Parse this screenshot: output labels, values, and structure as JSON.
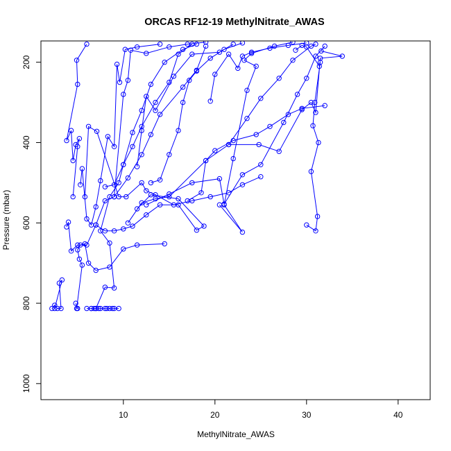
{
  "chart_data": {
    "type": "line",
    "title": "ORCAS RF12-19 MethylNitrate_AWAS",
    "xlabel": "MethylNitrate_AWAS",
    "ylabel": "Pressure (mbar)",
    "xlim": [
      1.0,
      43.5
    ],
    "ylim": [
      1040,
      147
    ],
    "y_reversed": true,
    "x_ticks": [
      10,
      20,
      30,
      40
    ],
    "y_ticks": [
      200,
      400,
      600,
      800,
      1000
    ],
    "grid": false,
    "legend": "none",
    "color": "#0000ff",
    "marker": "open-circle",
    "series": [
      {
        "values": [
          [
            2.2,
            813
          ],
          [
            2.5,
            805
          ],
          [
            2.8,
            813
          ],
          [
            3.2,
            813
          ],
          [
            3.0,
            750
          ],
          [
            3.3,
            742
          ],
          [
            2.5,
            813
          ]
        ]
      },
      {
        "values": [
          [
            4.8,
            800
          ],
          [
            5.0,
            813
          ],
          [
            4.9,
            813
          ],
          [
            5.5,
            705
          ],
          [
            5.2,
            690
          ],
          [
            5.0,
            667
          ],
          [
            5.3,
            655
          ],
          [
            5.8,
            652
          ],
          [
            6.2,
            700
          ],
          [
            7.0,
            718
          ],
          [
            8.5,
            710
          ],
          [
            10.0,
            665
          ],
          [
            11.5,
            655
          ],
          [
            14.5,
            652
          ]
        ]
      },
      {
        "values": [
          [
            6.0,
            813
          ],
          [
            6.5,
            813
          ],
          [
            7.0,
            813
          ],
          [
            7.5,
            813
          ],
          [
            8.0,
            813
          ],
          [
            8.5,
            813
          ],
          [
            9.0,
            813
          ],
          [
            9.5,
            813
          ],
          [
            8.8,
            813
          ],
          [
            8.2,
            813
          ],
          [
            7.3,
            813
          ],
          [
            6.8,
            813
          ]
        ]
      },
      {
        "values": [
          [
            6.5,
            813
          ],
          [
            7.0,
            813
          ],
          [
            8.0,
            760
          ],
          [
            9.0,
            762
          ],
          [
            8.5,
            650
          ],
          [
            7.5,
            620
          ],
          [
            8.5,
            535
          ],
          [
            9.5,
            500
          ],
          [
            10.0,
            455
          ],
          [
            11.0,
            410
          ],
          [
            12.0,
            360
          ],
          [
            13.5,
            300
          ],
          [
            15.0,
            250
          ],
          [
            16.0,
            180
          ],
          [
            17.5,
            155
          ]
        ]
      },
      {
        "values": [
          [
            3.8,
            610
          ],
          [
            4.0,
            598
          ],
          [
            4.3,
            670
          ],
          [
            5.0,
            655
          ],
          [
            6.0,
            655
          ],
          [
            7.0,
            605
          ],
          [
            8.0,
            545
          ],
          [
            9.0,
            535
          ],
          [
            10.5,
            488
          ],
          [
            12.0,
            430
          ],
          [
            13.0,
            380
          ],
          [
            14.0,
            330
          ],
          [
            16.5,
            262
          ],
          [
            18.0,
            220
          ],
          [
            19.0,
            160
          ]
        ]
      },
      {
        "values": [
          [
            4.5,
            535
          ],
          [
            5.0,
            410
          ],
          [
            5.2,
            390
          ],
          [
            4.8,
            405
          ],
          [
            4.5,
            445
          ],
          [
            4.3,
            370
          ],
          [
            3.8,
            395
          ],
          [
            5.0,
            255
          ],
          [
            4.9,
            195
          ],
          [
            6.0,
            155
          ]
        ]
      },
      {
        "values": [
          [
            5.3,
            505
          ],
          [
            5.5,
            465
          ],
          [
            6.0,
            590
          ],
          [
            6.5,
            605
          ],
          [
            7.0,
            560
          ],
          [
            7.5,
            495
          ],
          [
            8.3,
            385
          ],
          [
            9.0,
            410
          ],
          [
            9.3,
            205
          ],
          [
            9.6,
            250
          ],
          [
            10.2,
            168
          ],
          [
            11.5,
            162
          ],
          [
            14.0,
            155
          ]
        ]
      },
      {
        "values": [
          [
            5.8,
            535
          ],
          [
            6.2,
            360
          ],
          [
            7.1,
            372
          ],
          [
            9.5,
            535
          ],
          [
            10.3,
            535
          ],
          [
            12.0,
            500
          ],
          [
            12.5,
            520
          ],
          [
            13.5,
            530
          ],
          [
            15.5,
            555
          ],
          [
            17.5,
            545
          ],
          [
            19.5,
            535
          ],
          [
            21.5,
            525
          ],
          [
            23.0,
            505
          ],
          [
            25.0,
            485
          ]
        ]
      },
      {
        "values": [
          [
            7.0,
            605
          ],
          [
            8.0,
            620
          ],
          [
            9.0,
            620
          ],
          [
            10.0,
            615
          ],
          [
            11.0,
            608
          ],
          [
            12.5,
            580
          ],
          [
            14.0,
            555
          ],
          [
            16.0,
            555
          ],
          [
            18.0,
            618
          ],
          [
            18.8,
            608
          ],
          [
            16.0,
            540
          ],
          [
            13.0,
            530
          ],
          [
            11.5,
            565
          ]
        ]
      },
      {
        "values": [
          [
            8.0,
            510
          ],
          [
            9.0,
            505
          ],
          [
            10.0,
            455
          ],
          [
            11.0,
            375
          ],
          [
            12.0,
            320
          ],
          [
            13.0,
            255
          ],
          [
            14.5,
            200
          ],
          [
            16.5,
            168
          ],
          [
            18.0,
            155
          ]
        ]
      },
      {
        "values": [
          [
            9.0,
            535
          ],
          [
            10.0,
            280
          ],
          [
            10.5,
            245
          ],
          [
            10.8,
            170
          ],
          [
            12.5,
            178
          ],
          [
            15.0,
            162
          ],
          [
            17.0,
            155
          ],
          [
            19.0,
            150
          ]
        ]
      },
      {
        "values": [
          [
            11.5,
            460
          ],
          [
            12.0,
            370
          ],
          [
            12.5,
            285
          ],
          [
            13.5,
            320
          ],
          [
            15.5,
            235
          ],
          [
            17.5,
            180
          ],
          [
            20.5,
            175
          ],
          [
            22.0,
            155
          ]
        ]
      },
      {
        "values": [
          [
            10.5,
            600
          ],
          [
            12.0,
            550
          ],
          [
            13.5,
            540
          ],
          [
            15.0,
            535
          ],
          [
            19.0,
            445
          ],
          [
            21.5,
            405
          ],
          [
            23.5,
            340
          ],
          [
            25.0,
            290
          ],
          [
            27.0,
            240
          ],
          [
            28.5,
            195
          ],
          [
            30.5,
            160
          ],
          [
            31.0,
            155
          ]
        ]
      },
      {
        "values": [
          [
            12.5,
            555
          ],
          [
            15.0,
            528
          ],
          [
            17.5,
            500
          ],
          [
            20.5,
            490
          ],
          [
            21.0,
            553
          ],
          [
            23.0,
            480
          ],
          [
            25.0,
            455
          ],
          [
            27.5,
            350
          ],
          [
            29.0,
            280
          ],
          [
            30.0,
            240
          ],
          [
            31.0,
            185
          ],
          [
            32.0,
            160
          ]
        ]
      },
      {
        "values": [
          [
            19.5,
            297
          ],
          [
            20.0,
            230
          ],
          [
            21.5,
            180
          ],
          [
            22.5,
            215
          ],
          [
            23.0,
            185
          ],
          [
            24.0,
            175
          ],
          [
            26.0,
            165
          ],
          [
            28.0,
            158
          ],
          [
            30.0,
            152
          ]
        ]
      },
      {
        "values": [
          [
            21.5,
            405
          ],
          [
            24.8,
            405
          ],
          [
            27.0,
            422
          ],
          [
            29.5,
            318
          ],
          [
            30.5,
            300
          ],
          [
            31.0,
            325
          ],
          [
            31.5,
            190
          ],
          [
            33.9,
            185
          ],
          [
            31.6,
            172
          ]
        ]
      },
      {
        "values": [
          [
            30.0,
            605
          ],
          [
            31.0,
            620
          ],
          [
            31.2,
            584
          ],
          [
            30.5,
            472
          ],
          [
            31.3,
            400
          ],
          [
            30.7,
            358
          ],
          [
            30.9,
            300
          ],
          [
            31.5,
            200
          ],
          [
            31.4,
            210
          ],
          [
            30.0,
            162
          ],
          [
            29.5,
            158
          ],
          [
            28.8,
            170
          ]
        ]
      },
      {
        "values": [
          [
            20.5,
            555
          ],
          [
            23.0,
            623
          ],
          [
            21.0,
            555
          ],
          [
            22.0,
            440
          ],
          [
            23.5,
            270
          ],
          [
            24.5,
            210
          ],
          [
            23.2,
            195
          ],
          [
            24.0,
            178
          ],
          [
            26.5,
            160
          ],
          [
            28.5,
            150
          ]
        ]
      },
      {
        "values": [
          [
            17.0,
            545
          ],
          [
            18.5,
            525
          ],
          [
            19.0,
            445
          ],
          [
            20.0,
            420
          ],
          [
            22.0,
            395
          ],
          [
            24.5,
            380
          ],
          [
            26.0,
            360
          ],
          [
            28.0,
            330
          ],
          [
            29.5,
            315
          ],
          [
            32.0,
            308
          ]
        ]
      },
      {
        "values": [
          [
            13.0,
            500
          ],
          [
            14.0,
            493
          ],
          [
            15.0,
            430
          ],
          [
            16.0,
            370
          ],
          [
            16.5,
            300
          ],
          [
            17.2,
            245
          ],
          [
            18.0,
            222
          ],
          [
            19.5,
            190
          ],
          [
            21.0,
            168
          ],
          [
            23.0,
            152
          ]
        ]
      }
    ]
  }
}
